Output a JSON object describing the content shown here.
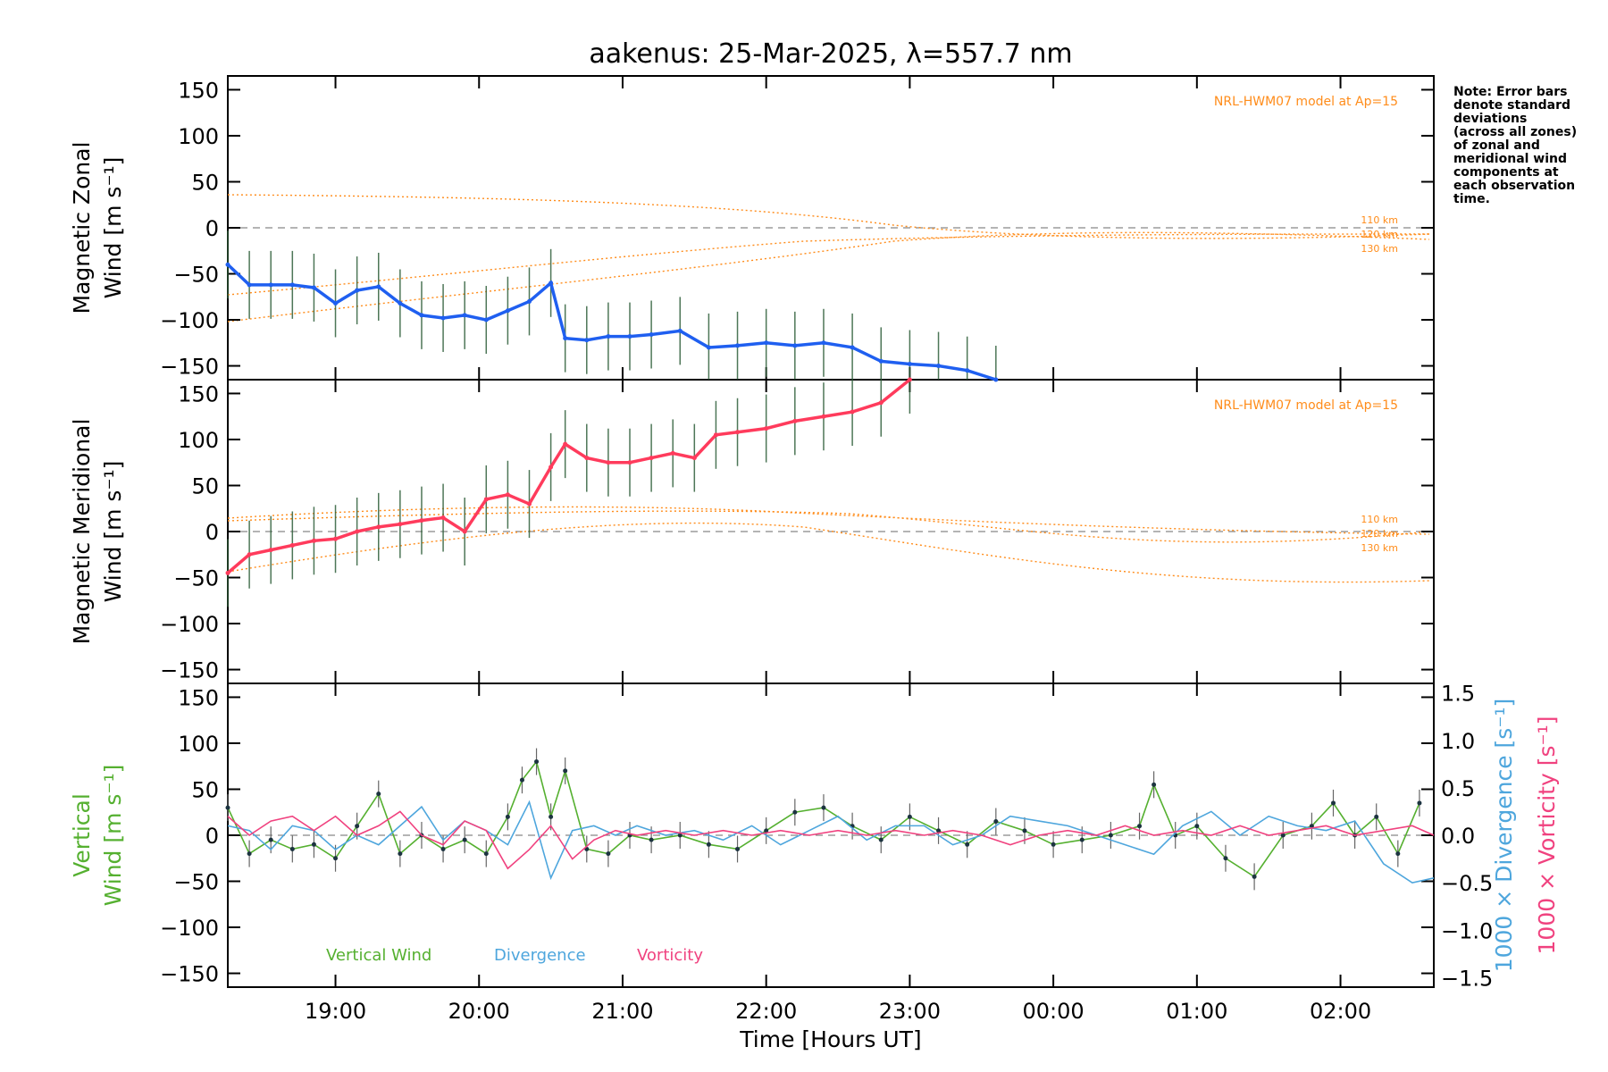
{
  "chart_data": [
    {
      "type": "line",
      "title": "aakenus: 25-Mar-2025, λ=557.7 nm",
      "panel": "zonal",
      "ylabel_line1": "Magnetic Zonal",
      "ylabel_wind": "Wind",
      "ylabel_units": "[m s⁻¹]",
      "ylim": [
        -165,
        165
      ],
      "yticks": [
        150,
        100,
        50,
        0,
        -50,
        -100,
        -150
      ],
      "ytick_labels": [
        "150",
        "100",
        "50",
        "0",
        "−50",
        "−100",
        "−150"
      ],
      "model_label": "NRL-HWM07 model at Ap=15",
      "model_km_labels": [
        "110 km",
        "120 km",
        "130 km"
      ],
      "note": [
        "Note: Error bars",
        "denote standard",
        "deviations",
        "(across all zones)",
        "of zonal and",
        "meridional wind",
        "components at",
        "each observation",
        "time."
      ],
      "series": [
        {
          "name": "mean zonal wind",
          "color": "#1f5ff0",
          "x": [
            18.25,
            18.4,
            18.55,
            18.7,
            18.85,
            19.0,
            19.15,
            19.3,
            19.45,
            19.6,
            19.75,
            19.9,
            20.05,
            20.2,
            20.35,
            20.5,
            20.6,
            20.75,
            20.9,
            21.05,
            21.2,
            21.4,
            21.6,
            21.8,
            22.0,
            22.2,
            22.4,
            22.6,
            22.8,
            23.0,
            23.2,
            23.4,
            23.6
          ],
          "y": [
            -40,
            -62,
            -62,
            -62,
            -65,
            -82,
            -68,
            -64,
            -82,
            -95,
            -98,
            -95,
            -100,
            -90,
            -80,
            -60,
            -120,
            -122,
            -118,
            -118,
            -116,
            -112,
            -130,
            -128,
            -125,
            -128,
            -125,
            -130,
            -145,
            -148,
            -150,
            -155,
            -165
          ]
        },
        {
          "name": "mean meridional wind",
          "color": "#ff3b5c",
          "x": [
            18.25,
            18.4,
            18.55,
            18.7,
            18.85,
            19.0,
            19.15,
            19.3,
            19.45,
            19.6,
            19.75,
            19.9,
            20.05,
            20.2,
            20.35,
            20.5,
            20.6,
            20.75,
            20.9,
            21.05,
            21.2,
            21.35,
            21.5,
            21.65,
            21.8,
            22.0,
            22.2,
            22.4,
            22.6,
            22.8,
            23.0
          ],
          "y": [
            -45,
            -25,
            -20,
            -15,
            -10,
            -8,
            0,
            5,
            8,
            12,
            15,
            0,
            35,
            40,
            30,
            70,
            95,
            80,
            75,
            75,
            80,
            85,
            80,
            105,
            108,
            112,
            120,
            125,
            130,
            140,
            165
          ]
        }
      ]
    },
    {
      "type": "line",
      "panel": "meridional",
      "ylabel_line1": "Magnetic Meridional",
      "ylabel_wind": "Wind",
      "ylabel_units": "[m s⁻¹]",
      "ylim": [
        -165,
        165
      ],
      "yticks": [
        150,
        100,
        50,
        0,
        -50,
        -100,
        -150
      ],
      "ytick_labels": [
        "150",
        "100",
        "50",
        "0",
        "−50",
        "−100",
        "−150"
      ],
      "model_label": "NRL-HWM07 model at Ap=15",
      "model_km_labels": [
        "110 km",
        "120 km",
        "130 km"
      ]
    },
    {
      "type": "line",
      "panel": "vertical",
      "ylabel_line1": "Vertical",
      "ylabel_wind": "Wind",
      "ylabel_units": "[m s⁻¹]",
      "ylim": [
        -165,
        165
      ],
      "yticks": [
        150,
        100,
        50,
        0,
        -50,
        -100,
        -150
      ],
      "ytick_labels": [
        "150",
        "100",
        "50",
        "0",
        "−50",
        "−100",
        "−150"
      ],
      "y2lim": [
        -1.6,
        1.6
      ],
      "y2ticks": [
        1.5,
        1.0,
        0.5,
        0.0,
        -0.5,
        -1.0,
        -1.5
      ],
      "y2tick_labels": [
        "1.5",
        "1.0",
        "0.5",
        "0.0",
        "−0.5",
        "−1.0",
        "−1.5"
      ],
      "y2label_divergence": "1000 × Divergence [s⁻¹]",
      "y2label_vorticity": "1000 × Vorticity [s⁻¹]",
      "xlabel": "Time [Hours UT]",
      "xlim": [
        18.25,
        26.65
      ],
      "xticks": [
        19,
        20,
        21,
        22,
        23,
        24,
        25,
        26
      ],
      "xtick_labels": [
        "19:00",
        "20:00",
        "21:00",
        "22:00",
        "23:00",
        "00:00",
        "01:00",
        "02:00"
      ],
      "legend": [
        "Vertical Wind",
        "Divergence",
        "Vorticity"
      ],
      "series": [
        {
          "name": "Vertical Wind",
          "color": "#55b030",
          "x": [
            18.25,
            18.4,
            18.55,
            18.7,
            18.85,
            19.0,
            19.15,
            19.3,
            19.45,
            19.6,
            19.75,
            19.9,
            20.05,
            20.2,
            20.3,
            20.4,
            20.5,
            20.6,
            20.75,
            20.9,
            21.05,
            21.2,
            21.4,
            21.6,
            21.8,
            22.0,
            22.2,
            22.4,
            22.6,
            22.8,
            23.0,
            23.2,
            23.4,
            23.6,
            23.8,
            24.0,
            24.2,
            24.4,
            24.6,
            24.7,
            24.85,
            25.0,
            25.2,
            25.4,
            25.6,
            25.8,
            25.95,
            26.1,
            26.25,
            26.4,
            26.55
          ],
          "y": [
            30,
            -20,
            -5,
            -15,
            -10,
            -25,
            10,
            45,
            -20,
            0,
            -15,
            -5,
            -20,
            20,
            60,
            80,
            20,
            70,
            -15,
            -20,
            0,
            -5,
            0,
            -10,
            -15,
            5,
            25,
            30,
            10,
            -5,
            20,
            5,
            -10,
            15,
            5,
            -10,
            -5,
            0,
            10,
            55,
            0,
            10,
            -25,
            -45,
            0,
            10,
            35,
            0,
            20,
            -20,
            35
          ]
        },
        {
          "name": "Divergence",
          "color": "#4ea6dd",
          "x": [
            18.25,
            18.4,
            18.55,
            18.7,
            18.85,
            19.0,
            19.15,
            19.3,
            19.45,
            19.6,
            19.75,
            19.9,
            20.05,
            20.2,
            20.35,
            20.5,
            20.65,
            20.8,
            20.95,
            21.1,
            21.3,
            21.5,
            21.7,
            21.9,
            22.1,
            22.3,
            22.5,
            22.7,
            22.9,
            23.1,
            23.3,
            23.5,
            23.7,
            23.9,
            24.1,
            24.3,
            24.5,
            24.7,
            24.9,
            25.1,
            25.3,
            25.5,
            25.7,
            25.9,
            26.1,
            26.3,
            26.5,
            26.65
          ],
          "y": [
            0.1,
            0.05,
            -0.15,
            0.1,
            0.05,
            -0.15,
            0.0,
            -0.1,
            0.1,
            0.3,
            -0.05,
            0.15,
            0.05,
            -0.1,
            0.35,
            -0.45,
            0.05,
            0.1,
            0.0,
            0.1,
            0.0,
            0.05,
            -0.05,
            0.1,
            -0.1,
            0.05,
            0.2,
            -0.05,
            0.1,
            0.1,
            -0.1,
            0.0,
            0.2,
            0.15,
            0.1,
            0.0,
            -0.1,
            -0.2,
            0.1,
            0.25,
            0.0,
            0.2,
            0.1,
            0.05,
            0.15,
            -0.3,
            -0.5,
            -0.45
          ]
        },
        {
          "name": "Vorticity",
          "color": "#f0427f",
          "x": [
            18.25,
            18.4,
            18.55,
            18.7,
            18.85,
            19.0,
            19.15,
            19.3,
            19.45,
            19.6,
            19.75,
            19.9,
            20.05,
            20.2,
            20.35,
            20.5,
            20.65,
            20.8,
            20.95,
            21.1,
            21.3,
            21.5,
            21.7,
            21.9,
            22.1,
            22.3,
            22.5,
            22.7,
            22.9,
            23.1,
            23.3,
            23.5,
            23.7,
            23.9,
            24.1,
            24.3,
            24.5,
            24.7,
            24.9,
            25.1,
            25.3,
            25.5,
            25.7,
            25.9,
            26.1,
            26.3,
            26.5,
            26.65
          ],
          "y": [
            0.2,
            0.0,
            0.15,
            0.2,
            0.05,
            0.2,
            0.0,
            0.1,
            0.25,
            0.0,
            -0.1,
            0.15,
            0.05,
            -0.35,
            -0.15,
            0.1,
            -0.25,
            -0.05,
            0.05,
            0.0,
            0.05,
            0.0,
            0.05,
            0.0,
            0.05,
            0.0,
            0.05,
            0.0,
            0.05,
            0.0,
            0.05,
            0.0,
            -0.1,
            0.0,
            0.05,
            0.0,
            0.1,
            0.0,
            0.05,
            0.0,
            0.1,
            0.0,
            0.05,
            0.1,
            0.0,
            0.05,
            0.1,
            0.0
          ]
        }
      ]
    }
  ]
}
